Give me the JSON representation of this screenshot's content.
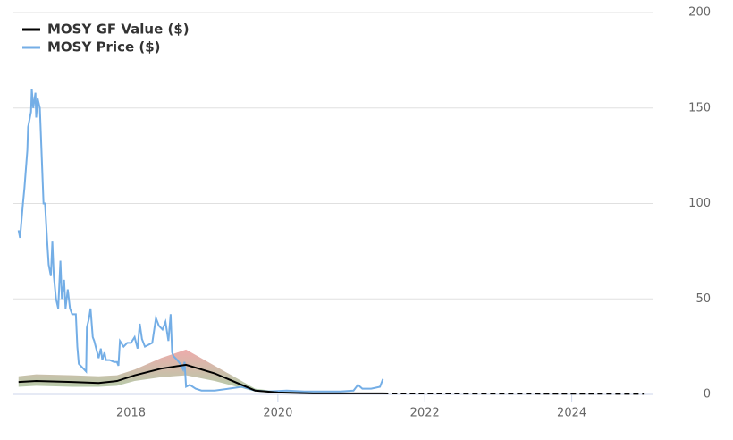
{
  "chart_data": {
    "type": "line",
    "xlim": [
      2016.4,
      2025.1
    ],
    "xticks": [
      2018,
      2020,
      2022,
      2024
    ],
    "ylim": [
      0,
      200
    ],
    "yticks": [
      0,
      50,
      100,
      150,
      200
    ],
    "grid": true,
    "legend": "top-left",
    "series": [
      {
        "name": "MOSY GF Value ($)",
        "color": "#000000",
        "x": [
          2016.47,
          2016.71,
          2017.2,
          2017.56,
          2017.81,
          2018.05,
          2018.41,
          2018.75,
          2019.14,
          2019.69,
          2020.0,
          2020.48,
          2021.43,
          2024.98
        ],
        "values": [
          6.5,
          7,
          6.5,
          6,
          7,
          10,
          13.5,
          15.5,
          11,
          2,
          1,
          0.5,
          0.5,
          0.3
        ],
        "dashed_after": 2021.43
      },
      {
        "name": "MOSY Price ($)",
        "color": "#74aee6",
        "x": [
          2016.47,
          2016.49,
          2016.53,
          2016.55,
          2016.59,
          2016.6,
          2016.64,
          2016.65,
          2016.67,
          2016.7,
          2016.71,
          2016.73,
          2016.76,
          2016.78,
          2016.81,
          2016.83,
          2016.86,
          2016.88,
          2016.91,
          2016.93,
          2016.95,
          2016.98,
          2017.01,
          2017.04,
          2017.06,
          2017.09,
          2017.11,
          2017.14,
          2017.17,
          2017.2,
          2017.25,
          2017.27,
          2017.29,
          2017.34,
          2017.39,
          2017.4,
          2017.43,
          2017.45,
          2017.48,
          2017.5,
          2017.54,
          2017.56,
          2017.59,
          2017.61,
          2017.64,
          2017.66,
          2017.71,
          2017.77,
          2017.81,
          2017.83,
          2017.85,
          2017.9,
          2017.95,
          2018.0,
          2018.05,
          2018.09,
          2018.12,
          2018.15,
          2018.19,
          2018.24,
          2018.29,
          2018.34,
          2018.38,
          2018.43,
          2018.47,
          2018.51,
          2018.54,
          2018.56,
          2018.58,
          2018.63,
          2018.67,
          2018.71,
          2018.73,
          2018.75,
          2018.8,
          2018.88,
          2018.96,
          2019.14,
          2019.33,
          2019.51,
          2019.69,
          2019.87,
          2020.12,
          2020.36,
          2020.6,
          2020.85,
          2021.03,
          2021.09,
          2021.15,
          2021.27,
          2021.39,
          2021.43
        ],
        "values": [
          86,
          82,
          100,
          108,
          128,
          140,
          148,
          160,
          150,
          158,
          145,
          155,
          150,
          130,
          100,
          100,
          80,
          68,
          62,
          80,
          62,
          50,
          45,
          70,
          50,
          60,
          45,
          55,
          45,
          42,
          42,
          25,
          16,
          14,
          12,
          35,
          40,
          45,
          30,
          28,
          22,
          19,
          24,
          18,
          22,
          18,
          18,
          17,
          17,
          15,
          28,
          25,
          27,
          27,
          30,
          24,
          37,
          29,
          25,
          26,
          27,
          40,
          36,
          34,
          38,
          28,
          42,
          22,
          20,
          18,
          16,
          13,
          17,
          4,
          5,
          3,
          2,
          2,
          3,
          4,
          2,
          1.5,
          2,
          1.5,
          1.5,
          1.5,
          2,
          5,
          3,
          3,
          4,
          8
        ]
      }
    ],
    "bands": {
      "colors": [
        "#e06666",
        "#6aaa64"
      ],
      "x": [
        2016.47,
        2016.71,
        2017.2,
        2017.56,
        2017.81,
        2018.05,
        2018.41,
        2018.75,
        2019.14,
        2019.69,
        2020.0,
        2020.48,
        2021.43
      ],
      "upper": [
        9.5,
        10.5,
        10,
        9.5,
        10,
        13,
        19,
        23.5,
        15,
        3,
        1.5,
        1,
        0.8
      ],
      "lower": [
        4,
        4.5,
        4,
        4,
        4.5,
        7,
        9,
        10,
        7,
        1.5,
        0.7,
        0.3,
        0.3
      ]
    }
  }
}
